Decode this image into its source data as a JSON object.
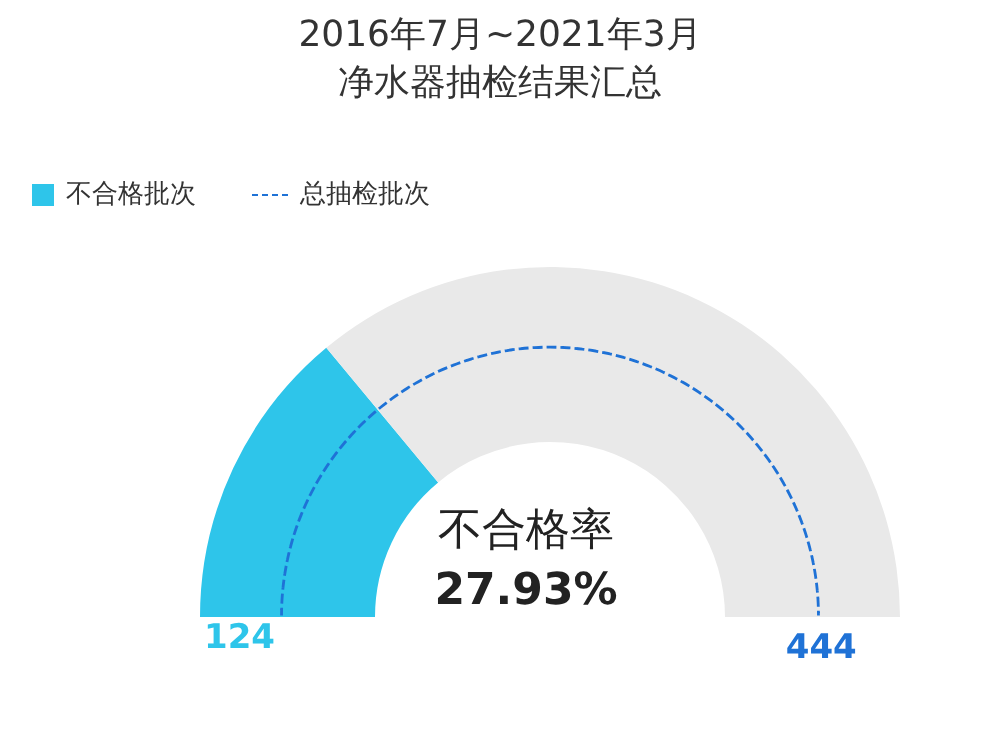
{
  "chart_data": {
    "type": "donut",
    "title": "2016年7月~2021年3月",
    "subtitle": "净水器抽检结果汇总",
    "categories": [
      null,
      null
    ],
    "series": [
      {
        "name": "不合格批次",
        "color": "#2ec5ea",
        "colors": [
          "#2ec5ea",
          "#e9e9e9"
        ],
        "values": [
          124,
          320
        ],
        "value_labels": [
          "124",
          null
        ]
      },
      {
        "name": "总抽检批次",
        "color": "#1f72d6",
        "values": [
          444,
          null
        ],
        "line_style": "dashed",
        "value_labels": [
          "444",
          null
        ]
      }
    ],
    "legend": "top left",
    "annotations": [
      "不合格率",
      "27.93%"
    ]
  }
}
